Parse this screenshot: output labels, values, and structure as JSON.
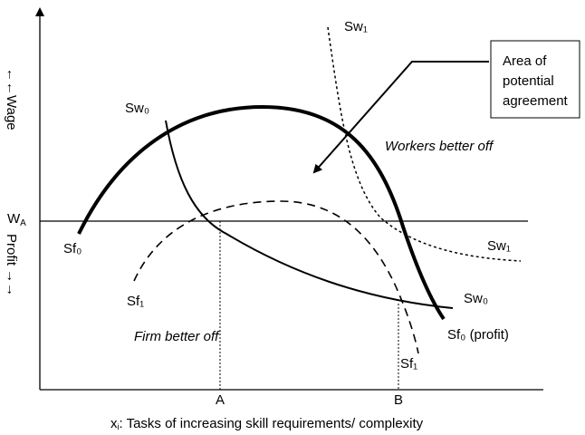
{
  "axes": {
    "y_upper": "←←Wage",
    "y_lower": "Profit →→",
    "x_label": {
      "main": "x",
      "sub": "i",
      "rest": ": Tasks of increasing skill requirements/ complexity"
    },
    "x_points": [
      "A",
      "B"
    ]
  },
  "wage_line": {
    "main": "W",
    "sub": "A"
  },
  "curves": {
    "sw1_top": "Sw₁",
    "sw0_left": "Sw₀",
    "sf0_left": "Sf₀",
    "sw1_right": "Sw₁",
    "sf1_left": "Sf₁",
    "sw0_right": "Sw₀",
    "sf0_right": "Sf₀ (profit)",
    "sf1_bottom": "Sf₁"
  },
  "regions": {
    "workers": "Workers better off",
    "firm": "Firm better off"
  },
  "callout": {
    "lines": [
      "Area of",
      "potential",
      "agreement"
    ]
  }
}
